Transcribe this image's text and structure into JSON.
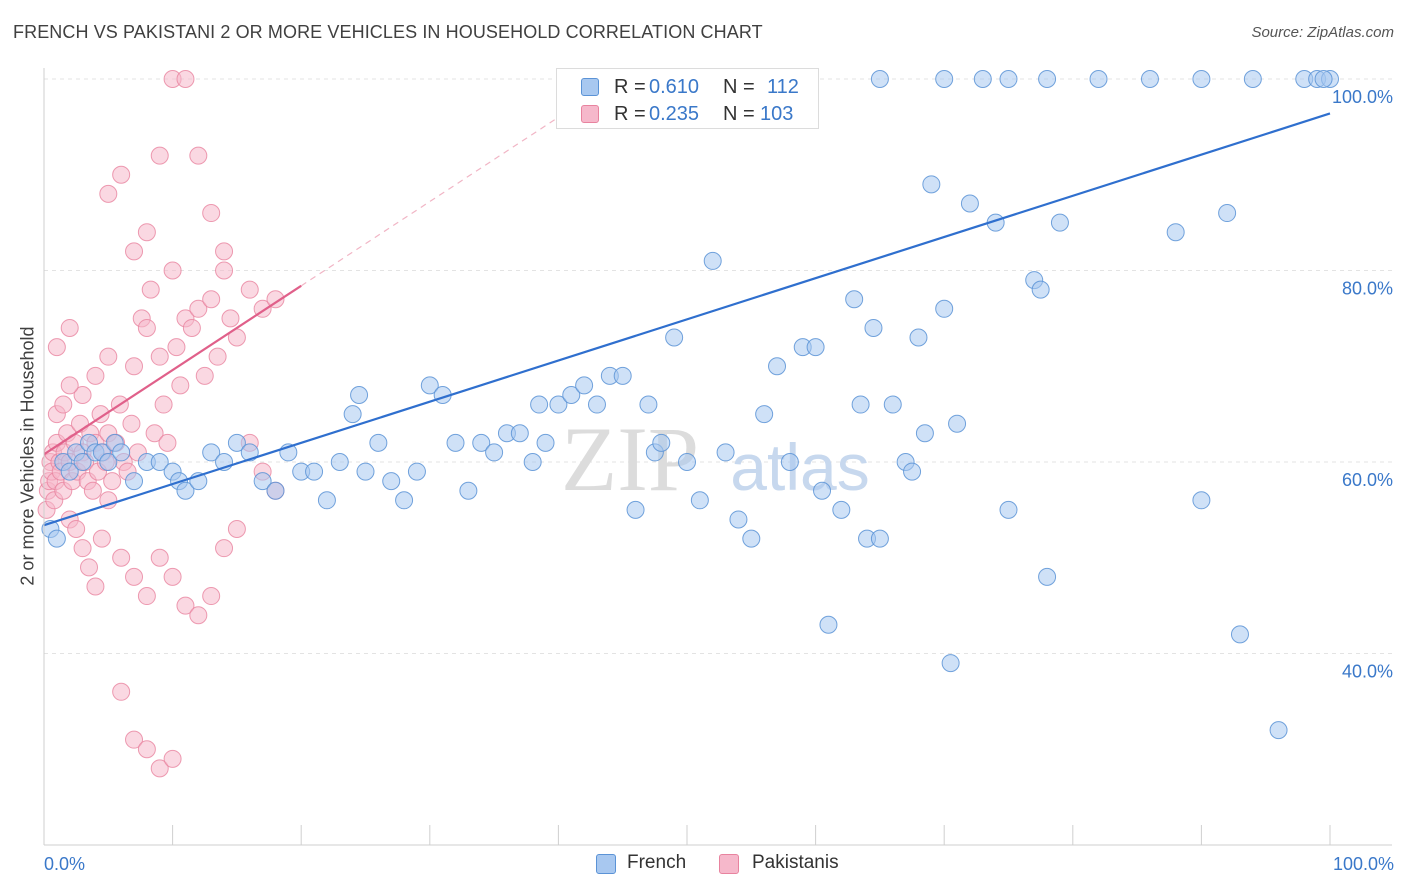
{
  "title": "FRENCH VS PAKISTANI 2 OR MORE VEHICLES IN HOUSEHOLD CORRELATION CHART",
  "source": "Source: ZipAtlas.com",
  "watermark": {
    "zip": "ZIP",
    "atlas": "atlas"
  },
  "legend_top": {
    "rows": [
      {
        "r_label": "R =",
        "r_value": "0.610",
        "n_label": "N =",
        "n_value": "112"
      },
      {
        "r_label": "R =",
        "r_value": "0.235",
        "n_label": "N =",
        "n_value": "103"
      }
    ]
  },
  "legend_bottom": {
    "french": "French",
    "pakistanis": "Pakistanis"
  },
  "colors": {
    "french_fill": "#a8c8f0",
    "french_stroke": "#5b93d6",
    "french_line": "#2f6fce",
    "pak_fill": "#f6b8cb",
    "pak_stroke": "#e8839f",
    "pak_line": "#e0608a",
    "axis_label": "#3a78c9",
    "grid": "#e3e3e3"
  },
  "chart_data": {
    "type": "scatter",
    "title": "FRENCH VS PAKISTANI 2 OR MORE VEHICLES IN HOUSEHOLD CORRELATION CHART",
    "xlabel": "",
    "ylabel": "2 or more Vehicles in Household",
    "xlim": [
      0,
      100
    ],
    "ylim": [
      20,
      100
    ],
    "x_tick_labels": [
      "0.0%",
      "100.0%"
    ],
    "y_ticks": [
      40,
      60,
      80,
      100
    ],
    "y_tick_labels": [
      "40.0%",
      "60.0%",
      "80.0%",
      "100.0%"
    ],
    "series": [
      {
        "name": "French",
        "R": 0.61,
        "N": 112,
        "trend": {
          "x": [
            0,
            100
          ],
          "y": [
            53.4,
            96.4
          ]
        },
        "points": [
          [
            0.5,
            53
          ],
          [
            1,
            52
          ],
          [
            1.5,
            60
          ],
          [
            2,
            59
          ],
          [
            2.5,
            61
          ],
          [
            3,
            60
          ],
          [
            3.5,
            62
          ],
          [
            4,
            61
          ],
          [
            4.5,
            61
          ],
          [
            5,
            60
          ],
          [
            5.5,
            62
          ],
          [
            6,
            61
          ],
          [
            7,
            58
          ],
          [
            8,
            60
          ],
          [
            9,
            60
          ],
          [
            10,
            59
          ],
          [
            10.5,
            58
          ],
          [
            11,
            57
          ],
          [
            12,
            58
          ],
          [
            13,
            61
          ],
          [
            14,
            60
          ],
          [
            15,
            62
          ],
          [
            16,
            61
          ],
          [
            17,
            58
          ],
          [
            18,
            57
          ],
          [
            19,
            61
          ],
          [
            20,
            59
          ],
          [
            21,
            59
          ],
          [
            22,
            56
          ],
          [
            23,
            60
          ],
          [
            24,
            65
          ],
          [
            24.5,
            67
          ],
          [
            25,
            59
          ],
          [
            26,
            62
          ],
          [
            27,
            58
          ],
          [
            28,
            56
          ],
          [
            29,
            59
          ],
          [
            30,
            68
          ],
          [
            31,
            67
          ],
          [
            32,
            62
          ],
          [
            33,
            57
          ],
          [
            34,
            62
          ],
          [
            35,
            61
          ],
          [
            36,
            63
          ],
          [
            37,
            63
          ],
          [
            38,
            60
          ],
          [
            38.5,
            66
          ],
          [
            39,
            62
          ],
          [
            40,
            66
          ],
          [
            41,
            67
          ],
          [
            42,
            68
          ],
          [
            43,
            66
          ],
          [
            44,
            69
          ],
          [
            45,
            69
          ],
          [
            46,
            55
          ],
          [
            47,
            66
          ],
          [
            47.5,
            61
          ],
          [
            48,
            62
          ],
          [
            49,
            73
          ],
          [
            50,
            60
          ],
          [
            51,
            56
          ],
          [
            52,
            81
          ],
          [
            53,
            61
          ],
          [
            54,
            54
          ],
          [
            55,
            52
          ],
          [
            56,
            65
          ],
          [
            57,
            70
          ],
          [
            58,
            60
          ],
          [
            59,
            72
          ],
          [
            60,
            72
          ],
          [
            60.5,
            57
          ],
          [
            61,
            43
          ],
          [
            62,
            55
          ],
          [
            63,
            77
          ],
          [
            63.5,
            66
          ],
          [
            64,
            52
          ],
          [
            64.5,
            74
          ],
          [
            65,
            52
          ],
          [
            66,
            66
          ],
          [
            67,
            60
          ],
          [
            67.5,
            59
          ],
          [
            68,
            73
          ],
          [
            68.5,
            63
          ],
          [
            69,
            89
          ],
          [
            70,
            76
          ],
          [
            70.5,
            39
          ],
          [
            71,
            64
          ],
          [
            72,
            87
          ],
          [
            74,
            85
          ],
          [
            75,
            55
          ],
          [
            77,
            79
          ],
          [
            77.5,
            78
          ],
          [
            78,
            48
          ],
          [
            79,
            85
          ],
          [
            88,
            84
          ],
          [
            90,
            56
          ],
          [
            92,
            86
          ],
          [
            93,
            42
          ],
          [
            96,
            32
          ],
          [
            98,
            100
          ],
          [
            99,
            100
          ],
          [
            100,
            100
          ],
          [
            70,
            100
          ],
          [
            73,
            100
          ],
          [
            75,
            100
          ],
          [
            78,
            100
          ],
          [
            82,
            100
          ],
          [
            86,
            100
          ],
          [
            90,
            100
          ],
          [
            94,
            100
          ],
          [
            99.5,
            100
          ],
          [
            65,
            100
          ]
        ]
      },
      {
        "name": "Pakistanis",
        "R": 0.235,
        "N": 103,
        "trend": {
          "x": [
            0,
            20
          ],
          "y": [
            60.8,
            78.4
          ]
        },
        "trend_extended": {
          "x": [
            20,
            40
          ],
          "y": [
            78.4,
            96
          ]
        },
        "points": [
          [
            0.2,
            55
          ],
          [
            0.3,
            57
          ],
          [
            0.4,
            58
          ],
          [
            0.5,
            60
          ],
          [
            0.6,
            59
          ],
          [
            0.7,
            61
          ],
          [
            0.8,
            56
          ],
          [
            0.9,
            58
          ],
          [
            1,
            62
          ],
          [
            1.2,
            60
          ],
          [
            1.3,
            59
          ],
          [
            1.5,
            57
          ],
          [
            1.6,
            61
          ],
          [
            1.8,
            63
          ],
          [
            2,
            60
          ],
          [
            2.2,
            58
          ],
          [
            2.4,
            62
          ],
          [
            2.6,
            59
          ],
          [
            2.8,
            64
          ],
          [
            3,
            61
          ],
          [
            3.2,
            60
          ],
          [
            3.4,
            58
          ],
          [
            3.6,
            63
          ],
          [
            3.8,
            57
          ],
          [
            4,
            62
          ],
          [
            4.2,
            59
          ],
          [
            4.4,
            65
          ],
          [
            4.6,
            61
          ],
          [
            4.8,
            60
          ],
          [
            5,
            63
          ],
          [
            5.3,
            58
          ],
          [
            5.6,
            62
          ],
          [
            5.9,
            66
          ],
          [
            6.2,
            60
          ],
          [
            6.5,
            59
          ],
          [
            6.8,
            64
          ],
          [
            7,
            70
          ],
          [
            7.3,
            61
          ],
          [
            7.6,
            75
          ],
          [
            8,
            74
          ],
          [
            8.3,
            78
          ],
          [
            8.6,
            63
          ],
          [
            9,
            71
          ],
          [
            9.3,
            66
          ],
          [
            9.6,
            62
          ],
          [
            10,
            80
          ],
          [
            10.3,
            72
          ],
          [
            10.6,
            68
          ],
          [
            11,
            75
          ],
          [
            11.5,
            74
          ],
          [
            12,
            76
          ],
          [
            12.5,
            69
          ],
          [
            13,
            77
          ],
          [
            13.5,
            71
          ],
          [
            14,
            82
          ],
          [
            14.5,
            75
          ],
          [
            15,
            73
          ],
          [
            16,
            78
          ],
          [
            17,
            76
          ],
          [
            18,
            77
          ],
          [
            2,
            54
          ],
          [
            2.5,
            53
          ],
          [
            3,
            51
          ],
          [
            3.5,
            49
          ],
          [
            4,
            47
          ],
          [
            4.5,
            52
          ],
          [
            5,
            56
          ],
          [
            6,
            50
          ],
          [
            7,
            48
          ],
          [
            8,
            46
          ],
          [
            9,
            50
          ],
          [
            10,
            48
          ],
          [
            11,
            45
          ],
          [
            12,
            44
          ],
          [
            13,
            46
          ],
          [
            14,
            51
          ],
          [
            15,
            53
          ],
          [
            16,
            62
          ],
          [
            17,
            59
          ],
          [
            18,
            57
          ],
          [
            6,
            36
          ],
          [
            7,
            31
          ],
          [
            8,
            30
          ],
          [
            9,
            28
          ],
          [
            10,
            29
          ],
          [
            5,
            88
          ],
          [
            6,
            90
          ],
          [
            7,
            82
          ],
          [
            8,
            84
          ],
          [
            9,
            92
          ],
          [
            10,
            100
          ],
          [
            11,
            100
          ],
          [
            12,
            92
          ],
          [
            13,
            86
          ],
          [
            14,
            80
          ],
          [
            1,
            72
          ],
          [
            2,
            74
          ],
          [
            3,
            67
          ],
          [
            4,
            69
          ],
          [
            5,
            71
          ],
          [
            1,
            65
          ],
          [
            1.5,
            66
          ],
          [
            2,
            68
          ]
        ]
      }
    ]
  }
}
